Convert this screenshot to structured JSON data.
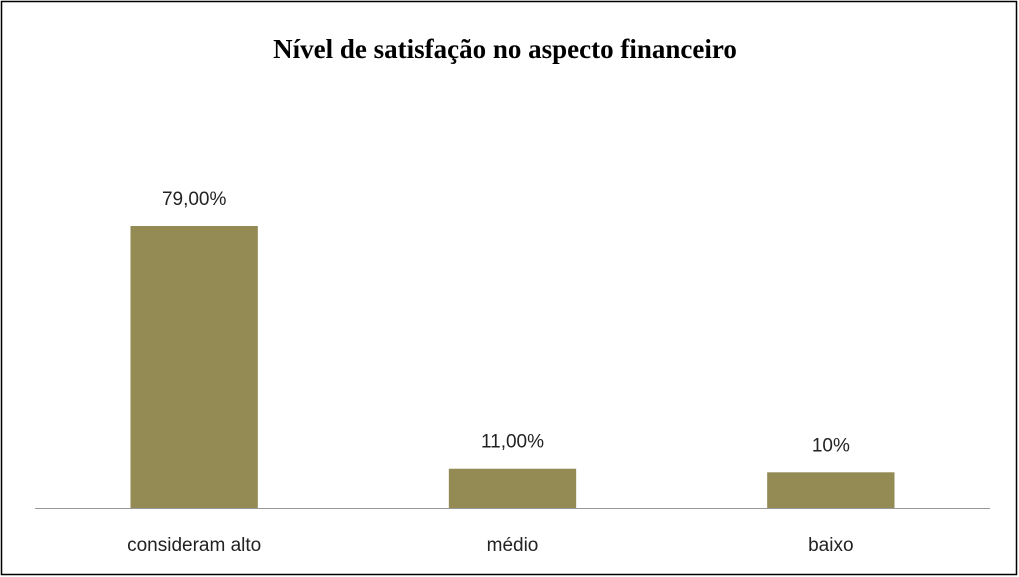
{
  "chart_data": {
    "type": "bar",
    "title": "Nível de satisfação no aspecto financeiro",
    "categories": [
      "consideram alto",
      "médio",
      "baixo"
    ],
    "values": [
      79,
      11,
      10
    ],
    "value_labels": [
      "79,00%",
      "11,00%",
      "10%"
    ],
    "color": "#948a54"
  }
}
